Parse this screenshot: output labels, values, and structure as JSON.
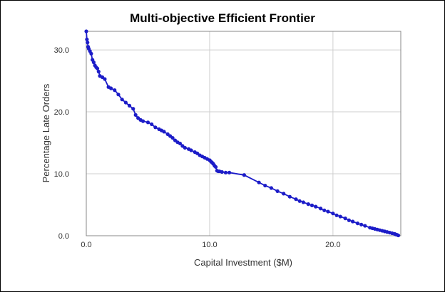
{
  "chart_data": {
    "type": "line",
    "title": "Multi-objective Efficient Frontier",
    "xlabel": "Capital Investment ($M)",
    "ylabel": "Percentage Late Orders",
    "xlim": [
      0,
      25.5
    ],
    "ylim": [
      0,
      33
    ],
    "xticks": [
      0,
      10,
      20
    ],
    "yticks": [
      0,
      10,
      20,
      30
    ],
    "xtick_labels": [
      "0.0",
      "10.0",
      "20.0"
    ],
    "ytick_labels": [
      "0.0",
      "10.0",
      "20.0",
      "30.0"
    ],
    "grid": true,
    "legend": "none",
    "colors": {
      "series": "#1c1cc8",
      "grid": "#cfcfcf",
      "axis": "#888888"
    },
    "series": [
      {
        "x": [
          0.0,
          0.05,
          0.1,
          0.15,
          0.2,
          0.3,
          0.4,
          0.5,
          0.6,
          0.7,
          0.8,
          0.9,
          1.0,
          1.1,
          1.3,
          1.5,
          1.8,
          2.0,
          2.3,
          2.6,
          2.9,
          3.2,
          3.5,
          3.8,
          4.0,
          4.2,
          4.4,
          4.6,
          5.0,
          5.3,
          5.6,
          5.9,
          6.1,
          6.3,
          6.6,
          6.8,
          7.0,
          7.2,
          7.4,
          7.6,
          7.8,
          8.0,
          8.3,
          8.5,
          8.8,
          9.0,
          9.2,
          9.4,
          9.6,
          9.8,
          10.0,
          10.1,
          10.2,
          10.3,
          10.4,
          10.5,
          10.6,
          10.7,
          10.8,
          11.0,
          11.3,
          11.6,
          12.8,
          14.0,
          14.5,
          15.0,
          15.5,
          16.0,
          16.5,
          17.0,
          17.3,
          17.6,
          18.0,
          18.3,
          18.6,
          19.0,
          19.3,
          19.6,
          20.0,
          20.3,
          20.6,
          21.0,
          21.3,
          21.6,
          22.0,
          22.3,
          22.6,
          23.0,
          23.2,
          23.4,
          23.6,
          23.8,
          24.0,
          24.2,
          24.4,
          24.6,
          24.8,
          25.0,
          25.1,
          25.2,
          25.3
        ],
        "y": [
          33.0,
          31.7,
          31.2,
          30.5,
          30.2,
          29.8,
          29.4,
          28.4,
          28.0,
          27.5,
          27.2,
          27.0,
          26.5,
          25.8,
          25.6,
          25.3,
          24.0,
          23.8,
          23.5,
          22.8,
          22.0,
          21.5,
          21.0,
          20.5,
          19.5,
          19.0,
          18.7,
          18.5,
          18.3,
          18.0,
          17.5,
          17.2,
          17.0,
          16.8,
          16.4,
          16.1,
          15.8,
          15.4,
          15.1,
          14.9,
          14.5,
          14.2,
          14.0,
          13.8,
          13.5,
          13.3,
          13.0,
          12.8,
          12.6,
          12.4,
          12.2,
          12.0,
          11.8,
          11.6,
          11.3,
          11.1,
          10.5,
          10.4,
          10.4,
          10.3,
          10.2,
          10.2,
          9.8,
          8.6,
          8.1,
          7.7,
          7.2,
          6.8,
          6.3,
          5.9,
          5.6,
          5.4,
          5.1,
          4.9,
          4.7,
          4.4,
          4.1,
          3.9,
          3.6,
          3.3,
          3.1,
          2.8,
          2.5,
          2.3,
          2.0,
          1.8,
          1.6,
          1.3,
          1.2,
          1.1,
          1.0,
          0.9,
          0.8,
          0.7,
          0.6,
          0.5,
          0.4,
          0.3,
          0.2,
          0.15,
          0.05
        ]
      }
    ]
  }
}
